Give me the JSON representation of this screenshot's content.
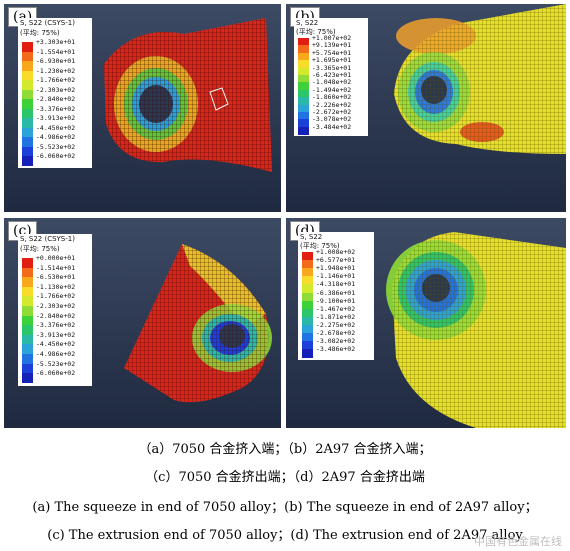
{
  "panels": [
    {
      "tag": "(a)",
      "legend_title": "S, S22 (CSYS-1)",
      "legend_sub": "(平均: 75%)",
      "values": [
        "+3.303e+01",
        "-1.554e+01",
        "-6.930e+01",
        "-1.230e+02",
        "-1.766e+02",
        "-2.303e+02",
        "-2.840e+02",
        "-3.376e+02",
        "-3.913e+02",
        "-4.450e+02",
        "-4.986e+02",
        "-5.523e+02",
        "-6.060e+02"
      ]
    },
    {
      "tag": "(b)",
      "legend_title": "S, S22",
      "legend_sub": "(平均: 75%)",
      "values": [
        "+1.007e+02",
        "+9.139e+01",
        "+5.754e+01",
        "+1.695e+01",
        "-3.365e+01",
        "-6.423e+01",
        "-1.048e+02",
        "-1.494e+02",
        "-1.860e+02",
        "-2.226e+02",
        "-2.672e+02",
        "-3.078e+02",
        "-3.484e+02"
      ]
    },
    {
      "tag": "(c)",
      "legend_title": "S, S22 (CSYS-1)",
      "legend_sub": "(平均: 75%)",
      "values": [
        "+0.000e+01",
        "-1.514e+01",
        "-6.530e+01",
        "-1.130e+02",
        "-1.766e+02",
        "-2.303e+02",
        "-2.840e+02",
        "-3.376e+02",
        "-3.913e+02",
        "-4.450e+02",
        "-4.986e+02",
        "-5.523e+02",
        "-6.060e+02"
      ]
    },
    {
      "tag": "(d)",
      "legend_title": "S, S22",
      "legend_sub": "(平均: 75%)",
      "values": [
        "+1.008e+02",
        "+6.577e+01",
        "+1.948e+01",
        "-1.146e+01",
        "-4.318e+01",
        "-6.386e+01",
        "-9.100e+01",
        "-1.467e+02",
        "-1.871e+02",
        "-2.275e+02",
        "-2.678e+02",
        "-3.082e+02",
        "-3.486e+02"
      ]
    }
  ],
  "legend_colors": [
    "#e21d12",
    "#f26a1a",
    "#f9a81e",
    "#f7dd2a",
    "#d3ea2c",
    "#8fdc36",
    "#3fd13a",
    "#2cc66a",
    "#2ab8a8",
    "#2aa3d8",
    "#2172e3",
    "#1d3fd9",
    "#1420b8"
  ],
  "captions": {
    "cn_line1": "（a）7050 合金挤入端；（b）2A97 合金挤入端；",
    "cn_line2": "（c）7050 合金挤出端；（d）2A97 合金挤出端",
    "en_line1": "(a) The squeeze in end of 7050 alloy；(b) The squeeze in end of 2A97 alloy；",
    "en_line2": "(c) The extrusion end of 7050 alloy；(d) The extrusion end of 2A97 alloy"
  },
  "watermark": "中国有色金属在线"
}
